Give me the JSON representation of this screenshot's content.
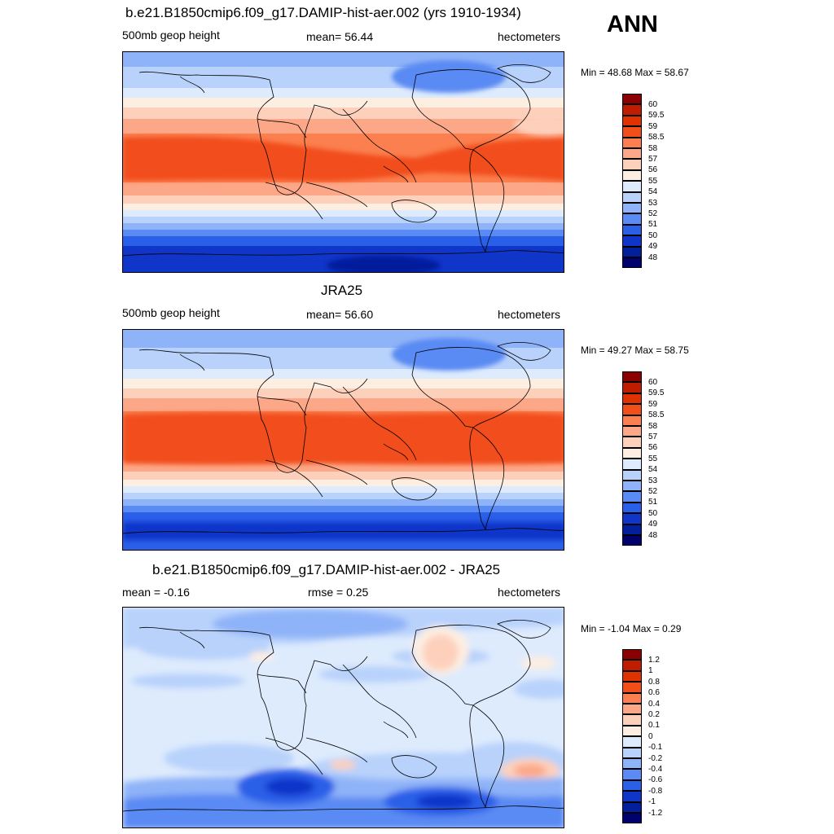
{
  "season": "ANN",
  "panels": [
    {
      "title": "b.e21.B1850cmip6.f09_g17.DAMIP-hist-aer.002 (yrs 1910-1934)",
      "left_text": "500mb geop height",
      "center_text": "mean=  56.44",
      "right_text": "hectometers",
      "minmax": "Min =  48.68 Max =  58.67",
      "colorbar_labels": [
        "60",
        "59.5",
        "59",
        "58.5",
        "58",
        "57",
        "56",
        "55",
        "54",
        "53",
        "52",
        "51",
        "50",
        "49",
        "48"
      ]
    },
    {
      "title": "JRA25",
      "left_text": "500mb geop height",
      "center_text": "mean=  56.60",
      "right_text": "hectometers",
      "minmax": "Min =  49.27 Max =  58.75",
      "colorbar_labels": [
        "60",
        "59.5",
        "59",
        "58.5",
        "58",
        "57",
        "56",
        "55",
        "54",
        "53",
        "52",
        "51",
        "50",
        "49",
        "48"
      ]
    },
    {
      "title": "b.e21.B1850cmip6.f09_g17.DAMIP-hist-aer.002 - JRA25",
      "left_text": "mean =  -0.16",
      "center_text": "rmse =   0.25",
      "right_text": "hectometers",
      "minmax": "Min =  -1.04 Max =   0.29",
      "colorbar_labels": [
        "1.2",
        "1",
        "0.8",
        "0.6",
        "0.4",
        "0.2",
        "0.1",
        "0",
        "-0.1",
        "-0.2",
        "-0.4",
        "-0.6",
        "-0.8",
        "-1",
        "-1.2"
      ]
    }
  ],
  "colorbar_colors": [
    "#8b0000",
    "#c01c00",
    "#e03200",
    "#f24e1a",
    "#fb7f4f",
    "#fca888",
    "#fdd0bb",
    "#fdeee2",
    "#deebfd",
    "#b8d2fb",
    "#8fb3f8",
    "#5a8af3",
    "#2a5fe8",
    "#1036c9",
    "#021f9c",
    "#00006e"
  ]
}
